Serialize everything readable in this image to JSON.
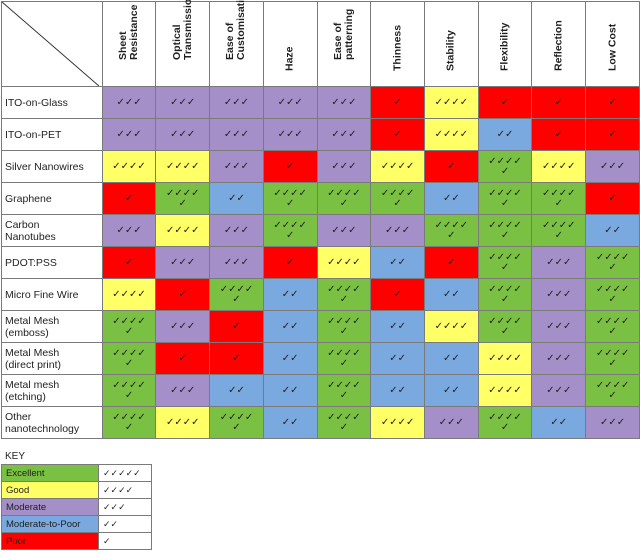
{
  "columns": [
    "Sheet\nResistance",
    "Optical\nTransmission",
    "Ease of\nCustomisation",
    "Haze",
    "Ease of\npatterning",
    "Thinness",
    "Stability",
    "Flexibility",
    "Reflection",
    "Low Cost"
  ],
  "rows": [
    {
      "label": "ITO-on-Glass",
      "ratings": [
        3,
        3,
        3,
        3,
        3,
        1,
        4,
        1,
        1,
        1
      ]
    },
    {
      "label": "ITO-on-PET",
      "ratings": [
        3,
        3,
        3,
        3,
        3,
        1,
        4,
        2,
        1,
        1
      ]
    },
    {
      "label": "Silver Nanowires",
      "ratings": [
        4,
        4,
        3,
        1,
        3,
        4,
        1,
        5,
        4,
        3
      ]
    },
    {
      "label": "Graphene",
      "ratings": [
        1,
        5,
        2,
        5,
        5,
        5,
        2,
        5,
        5,
        1
      ]
    },
    {
      "label": "Carbon\nNanotubes",
      "ratings": [
        3,
        4,
        3,
        5,
        3,
        3,
        5,
        5,
        5,
        2
      ]
    },
    {
      "label": "PDOT:PSS",
      "ratings": [
        1,
        3,
        3,
        1,
        4,
        2,
        1,
        5,
        3,
        5
      ]
    },
    {
      "label": "Micro Fine Wire",
      "ratings": [
        4,
        1,
        5,
        2,
        5,
        1,
        2,
        5,
        3,
        5
      ]
    },
    {
      "label": "Metal Mesh\n(emboss)",
      "ratings": [
        5,
        3,
        1,
        2,
        5,
        2,
        4,
        5,
        3,
        5
      ]
    },
    {
      "label": "Metal Mesh\n(direct print)",
      "ratings": [
        5,
        1,
        1,
        2,
        5,
        2,
        2,
        4,
        3,
        5
      ]
    },
    {
      "label": "Metal mesh\n(etching)",
      "ratings": [
        5,
        3,
        2,
        2,
        5,
        2,
        2,
        4,
        3,
        5
      ]
    },
    {
      "label": "Other\nnanotechnology",
      "ratings": [
        5,
        4,
        5,
        2,
        5,
        4,
        3,
        5,
        2,
        3
      ]
    }
  ],
  "ratings": {
    "5": {
      "label": "Excellent",
      "marks": "✓✓✓✓✓",
      "cell_marks": "✓✓✓✓\n✓",
      "color": "#7ac143"
    },
    "4": {
      "label": "Good",
      "marks": "✓✓✓✓",
      "cell_marks": "✓✓✓✓",
      "color": "#ffff66"
    },
    "3": {
      "label": "Moderate",
      "marks": "✓✓✓",
      "cell_marks": "✓✓✓",
      "color": "#a58fc8"
    },
    "2": {
      "label": "Moderate-to-Poor",
      "marks": "✓✓",
      "cell_marks": "✓✓",
      "color": "#79a9df"
    },
    "1": {
      "label": "Poor",
      "marks": "✓",
      "cell_marks": "✓",
      "color": "#ff0000"
    }
  },
  "key": {
    "title": "KEY",
    "order": [
      "5",
      "4",
      "3",
      "2",
      "1"
    ]
  }
}
